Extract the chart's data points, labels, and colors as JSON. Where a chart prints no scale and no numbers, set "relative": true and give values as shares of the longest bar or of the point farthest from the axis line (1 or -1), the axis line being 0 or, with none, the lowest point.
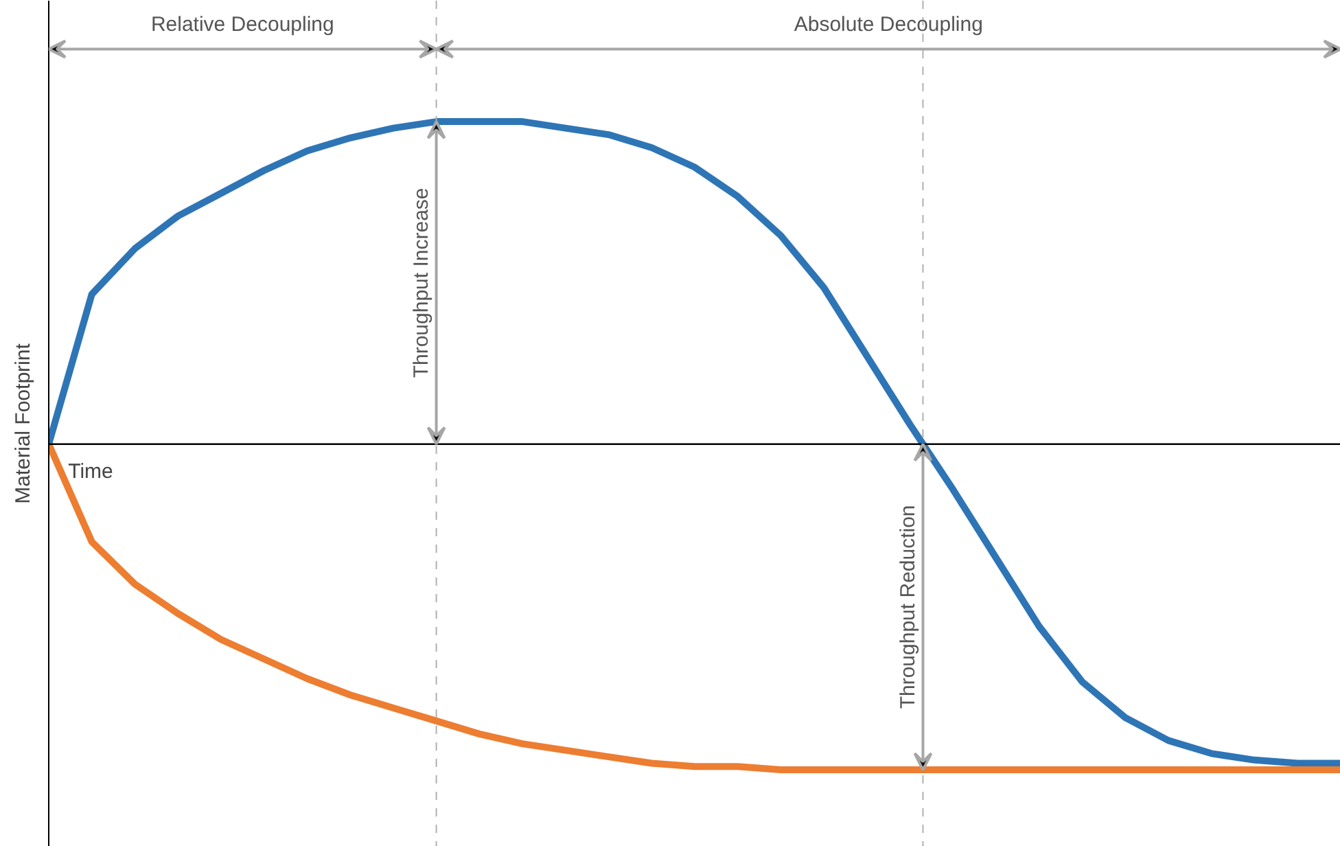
{
  "chart_data": {
    "type": "line",
    "relative": true,
    "xlabel": "Time",
    "ylabel": "Material Footprint",
    "categories": [
      null,
      null,
      null,
      null,
      null,
      null,
      null,
      null,
      null,
      null,
      null,
      null,
      null,
      null,
      null,
      null,
      null,
      null,
      null,
      null,
      null,
      null,
      null,
      null,
      null,
      null,
      null,
      null,
      null,
      null,
      null
    ],
    "series": [
      {
        "color": "#2e75b6",
        "values": [
          0,
          0.46,
          0.6,
          0.7,
          0.77,
          0.84,
          0.9,
          0.94,
          0.97,
          0.99,
          0.99,
          0.99,
          0.97,
          0.95,
          0.91,
          0.85,
          0.76,
          0.64,
          0.48,
          0.27,
          0.06,
          -0.14,
          -0.35,
          -0.56,
          -0.73,
          -0.84,
          -0.91,
          -0.95,
          -0.97,
          -0.98,
          -0.98
        ]
      },
      {
        "color": "#ed7d31",
        "values": [
          0,
          -0.3,
          -0.43,
          -0.52,
          -0.6,
          -0.66,
          -0.72,
          -0.77,
          -0.81,
          -0.85,
          -0.89,
          -0.92,
          -0.94,
          -0.96,
          -0.98,
          -0.99,
          -0.99,
          -1,
          -1,
          -1,
          -1,
          -1,
          -1,
          -1,
          -1,
          -1,
          -1,
          -1,
          -1,
          -1,
          -1
        ]
      }
    ],
    "annotations": [
      "Relative Decoupling",
      "Absolute Decoupling",
      "Throughput Increase",
      "Throughput Reduction"
    ],
    "line_style": "solid",
    "marker": "none",
    "grid": false
  }
}
